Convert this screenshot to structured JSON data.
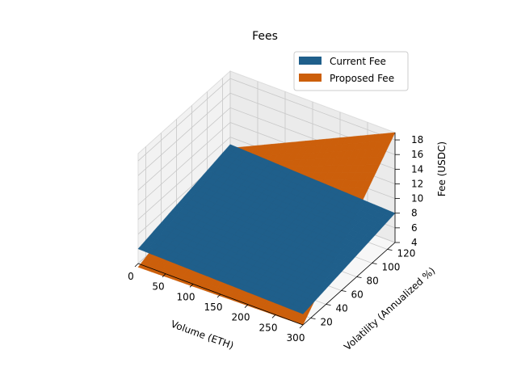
{
  "chart_data": {
    "type": "surface3d",
    "title": "Fees",
    "xlabel": "Volume (ETH)",
    "ylabel": "Volatility (Annualized %)",
    "zlabel": "Fee (USDC)",
    "xlim": [
      0,
      300
    ],
    "ylim": [
      10,
      130
    ],
    "zlim": [
      4,
      19
    ],
    "xticks": [
      "0",
      "50",
      "100",
      "150",
      "200",
      "250",
      "300"
    ],
    "yticks": [
      "20",
      "40",
      "60",
      "80",
      "100",
      "120"
    ],
    "zticks": [
      "4",
      "6",
      "8",
      "10",
      "12",
      "14",
      "16",
      "18"
    ],
    "legend_position": "top-right",
    "series": [
      {
        "name": "Current Fee",
        "color": "#1f5f8b",
        "corners": [
          {
            "x": 0,
            "y": 10,
            "z": 6.0
          },
          {
            "x": 300,
            "y": 10,
            "z": 5.5
          },
          {
            "x": 300,
            "y": 130,
            "z": 8.0
          },
          {
            "x": 0,
            "y": 130,
            "z": 9.0
          }
        ]
      },
      {
        "name": "Proposed Fee",
        "color": "#cc5f0b",
        "corners": [
          {
            "x": 0,
            "y": 10,
            "z": 3.5
          },
          {
            "x": 300,
            "y": 10,
            "z": 4.0
          },
          {
            "x": 300,
            "y": 130,
            "z": 19.0
          },
          {
            "x": 0,
            "y": 130,
            "z": 8.5
          }
        ]
      }
    ]
  }
}
